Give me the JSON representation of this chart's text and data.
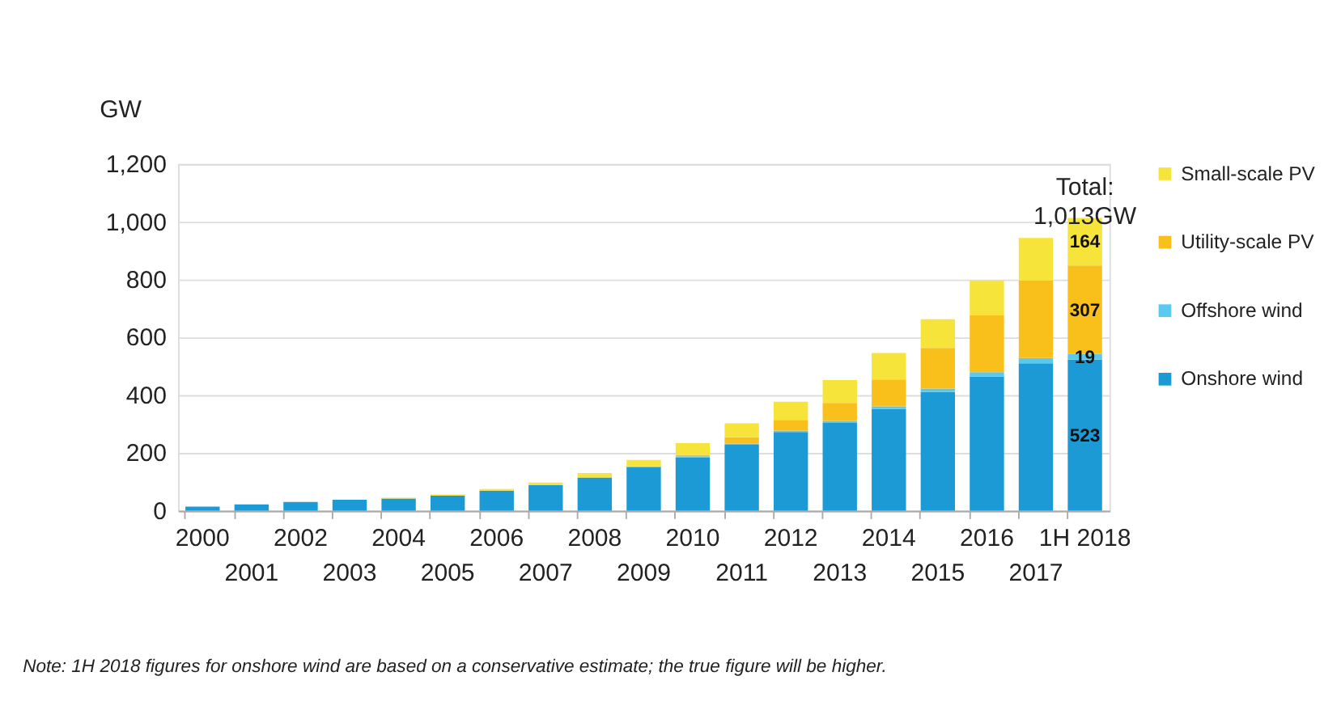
{
  "chart_data": {
    "type": "bar",
    "stacked": true,
    "ylabel": "GW",
    "categories": [
      "2000",
      "2001",
      "2002",
      "2003",
      "2004",
      "2005",
      "2006",
      "2007",
      "2008",
      "2009",
      "2010",
      "2011",
      "2012",
      "2013",
      "2014",
      "2015",
      "2016",
      "2017",
      "1H 2018"
    ],
    "series": [
      {
        "name": "Onshore wind",
        "color": "#1b9ad6",
        "values": [
          14,
          22,
          30,
          38,
          42,
          52,
          69,
          88,
          115,
          151,
          185,
          228,
          272,
          304,
          352,
          411,
          464,
          510,
          523
        ],
        "value_labels": [
          null,
          null,
          null,
          null,
          null,
          null,
          null,
          null,
          null,
          null,
          null,
          null,
          null,
          null,
          null,
          null,
          null,
          null,
          "523"
        ]
      },
      {
        "name": "Offshore wind",
        "color": "#5bc8ee",
        "values": [
          0,
          0,
          0,
          0,
          0,
          0,
          0,
          0,
          0,
          2,
          3,
          4,
          5,
          7,
          9,
          12,
          15,
          18,
          19
        ],
        "value_labels": [
          null,
          null,
          null,
          null,
          null,
          null,
          null,
          null,
          null,
          null,
          null,
          null,
          null,
          null,
          null,
          null,
          null,
          null,
          "19"
        ]
      },
      {
        "name": "Utility-scale PV",
        "color": "#f9bf1a",
        "values": [
          0,
          0,
          0,
          0,
          0,
          0,
          0,
          0,
          0,
          0,
          5,
          22,
          37,
          62,
          93,
          140,
          197,
          268,
          307
        ],
        "value_labels": [
          null,
          null,
          null,
          null,
          null,
          null,
          null,
          null,
          null,
          null,
          null,
          null,
          null,
          null,
          null,
          null,
          null,
          null,
          "307"
        ]
      },
      {
        "name": "Small-scale PV",
        "color": "#f7e43a",
        "values": [
          0,
          0,
          0,
          0,
          3,
          4,
          6,
          9,
          15,
          23,
          41,
          48,
          63,
          79,
          92,
          100,
          121,
          148,
          164
        ],
        "value_labels": [
          null,
          null,
          null,
          null,
          null,
          null,
          null,
          null,
          null,
          null,
          null,
          null,
          null,
          null,
          null,
          null,
          null,
          null,
          "164"
        ]
      }
    ],
    "totals": [
      null,
      null,
      null,
      null,
      null,
      null,
      null,
      null,
      null,
      null,
      null,
      null,
      null,
      null,
      null,
      null,
      null,
      null,
      "Total: 1,013GW"
    ],
    "ylim": [
      0,
      1200
    ],
    "yticks": [
      0,
      200,
      400,
      600,
      800,
      {
        "value": 1000,
        "label": "1,000"
      },
      {
        "value": 1200,
        "label": "1,200"
      }
    ],
    "grid": "y",
    "legend": "right",
    "annotations": [
      "Note: 1H 2018 figures for onshore wind are based on a conservative estimate; the true figure will be higher."
    ]
  }
}
